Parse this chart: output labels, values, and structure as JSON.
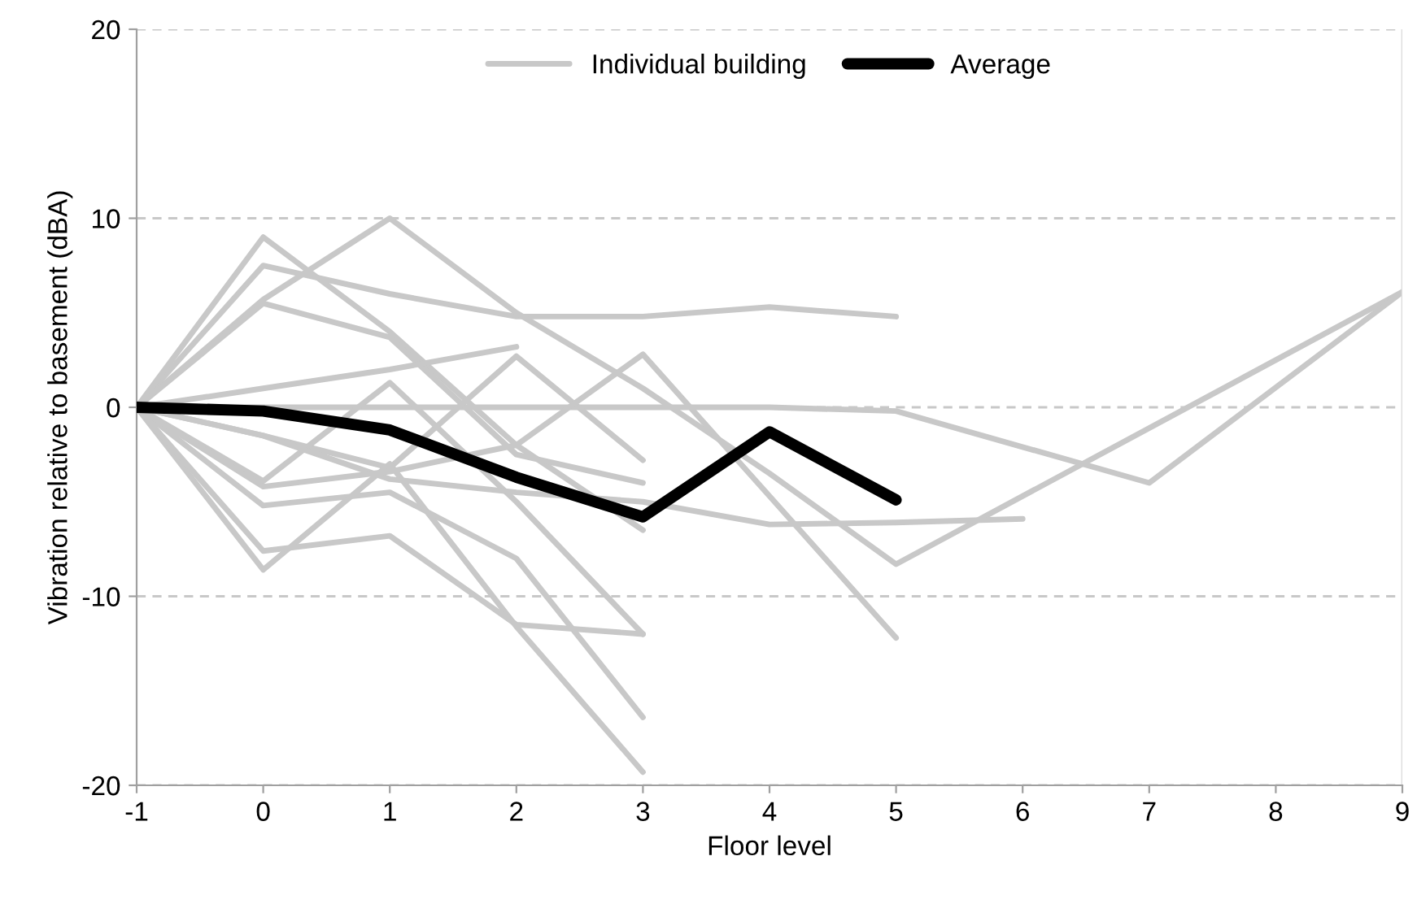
{
  "chart_data": {
    "type": "line",
    "xlabel": "Floor level",
    "ylabel": "Vibration relative to basement (dBA)",
    "xlim": [
      -1,
      9
    ],
    "xticks": [
      -1,
      0,
      1,
      2,
      3,
      4,
      5,
      6,
      7,
      8,
      9
    ],
    "ylim": [
      -20,
      20
    ],
    "yticks": [
      -20,
      -10,
      0,
      10,
      20
    ],
    "grid": "y",
    "legend": "top",
    "marker": "none",
    "line_style": "solid",
    "series": [
      {
        "name": "Individual building",
        "color": "#c8c8c8",
        "x": [
          -1,
          0,
          1,
          2,
          3,
          4,
          5
        ],
        "values": [
          0,
          7.5,
          6.0,
          4.8,
          4.8,
          5.3,
          4.8
        ]
      },
      {
        "color": "#c8c8c8",
        "x": [
          -1,
          0,
          1,
          2,
          3,
          4,
          5,
          9
        ],
        "values": [
          0,
          5.7,
          10.0,
          5.0,
          1.0,
          -3.5,
          -8.3,
          6.1
        ]
      },
      {
        "color": "#c8c8c8",
        "x": [
          -1,
          0,
          1,
          2,
          3
        ],
        "values": [
          0,
          9.0,
          4.0,
          -2.0,
          -6.5
        ]
      },
      {
        "color": "#c8c8c8",
        "x": [
          -1,
          0,
          1,
          2,
          3
        ],
        "values": [
          0,
          5.5,
          3.7,
          -2.5,
          -4.0
        ]
      },
      {
        "color": "#c8c8c8",
        "x": [
          -1,
          0,
          1,
          2
        ],
        "values": [
          0,
          1.0,
          2.0,
          3.2
        ]
      },
      {
        "color": "#c8c8c8",
        "x": [
          -1,
          0,
          1,
          2,
          3,
          4,
          5,
          7,
          9
        ],
        "values": [
          0,
          0,
          0,
          0,
          0,
          0,
          -0.2,
          -4.0,
          6.1
        ]
      },
      {
        "color": "#c8c8c8",
        "x": [
          -1,
          0,
          1,
          2,
          3
        ],
        "values": [
          0,
          -1.5,
          -3.2,
          2.7,
          -2.8
        ]
      },
      {
        "color": "#c8c8c8",
        "x": [
          -1,
          0,
          1,
          2,
          3
        ],
        "values": [
          0,
          -3.9,
          1.3,
          -5.0,
          -12.0
        ]
      },
      {
        "color": "#c8c8c8",
        "x": [
          -1,
          0,
          1,
          2,
          3
        ],
        "values": [
          0,
          -5.2,
          -4.5,
          -8.0,
          -16.4
        ]
      },
      {
        "color": "#c8c8c8",
        "x": [
          -1,
          0,
          1,
          2,
          3
        ],
        "values": [
          0,
          -8.6,
          -3.0,
          -11.6,
          -19.3
        ]
      },
      {
        "color": "#c8c8c8",
        "x": [
          -1,
          0,
          1,
          2,
          3
        ],
        "values": [
          0,
          -7.6,
          -6.8,
          -11.5,
          -12.0
        ]
      },
      {
        "color": "#c8c8c8",
        "x": [
          -1,
          0,
          1,
          2,
          3,
          4,
          5,
          6
        ],
        "values": [
          0,
          -1.5,
          -3.8,
          -4.5,
          -5.0,
          -6.2,
          -6.1,
          -5.9
        ]
      },
      {
        "color": "#c8c8c8",
        "x": [
          -1,
          0,
          1,
          2,
          3,
          4,
          5
        ],
        "values": [
          0,
          -4.2,
          -3.4,
          -2.0,
          2.8,
          -4.7,
          -12.2
        ]
      },
      {
        "name": "Average",
        "color": "#000000",
        "x": [
          -1,
          0,
          1,
          2,
          3,
          4,
          5
        ],
        "values": [
          0,
          -0.2,
          -1.2,
          -3.7,
          -5.8,
          -1.3,
          -4.9
        ]
      }
    ]
  }
}
